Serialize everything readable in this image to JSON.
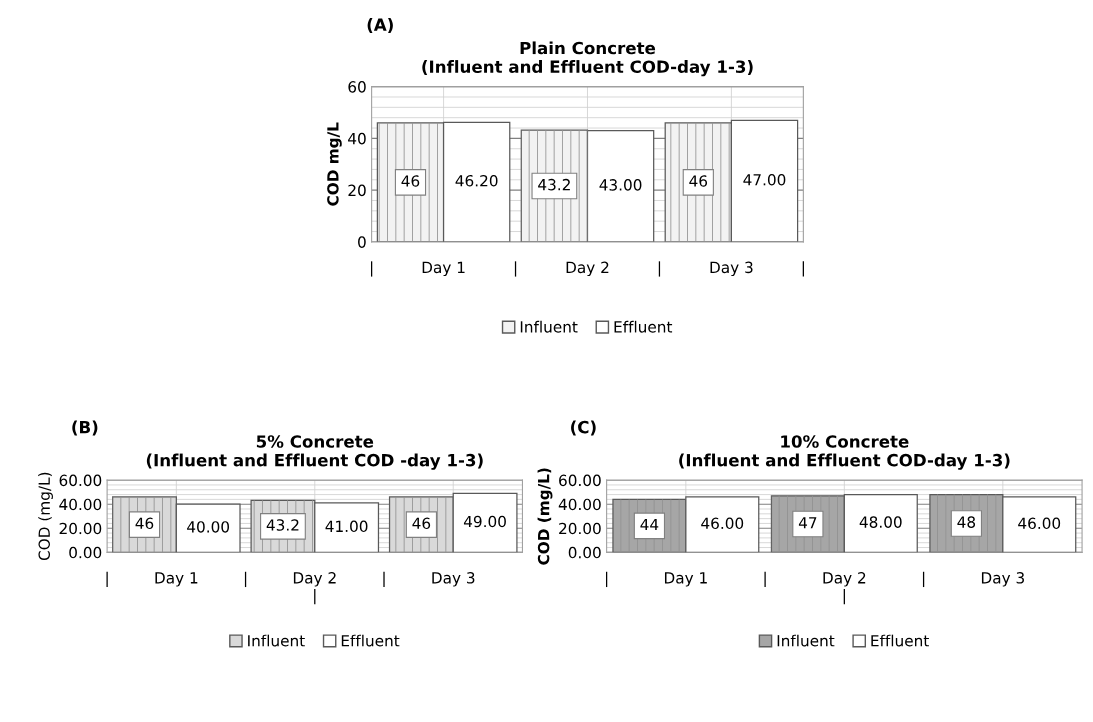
{
  "chart_data": [
    {
      "type": "bar",
      "title": "Plain Concrete\n(Influent and Effluent COD-day 1-3)",
      "ylabel": "COD mg/L",
      "annotations": [
        "(A)",
        "|",
        "|",
        "|",
        "|"
      ],
      "categories": [
        "Day 1",
        "Day 2",
        "Day 3"
      ],
      "series": [
        {
          "name": "Influent",
          "color": "#f2f2f2",
          "values": [
            46,
            43.2,
            46
          ],
          "value_labels": [
            "46",
            "43.2",
            "46"
          ]
        },
        {
          "name": "Effluent",
          "color": "#ffffff",
          "values": [
            46.2,
            43.0,
            47.0
          ],
          "value_labels": [
            "46.20",
            "43.00",
            "47.00"
          ]
        }
      ],
      "ylim": [
        0,
        60
      ],
      "yticks": [
        0,
        20,
        40,
        60
      ],
      "grid": true,
      "legend": "bottom"
    },
    {
      "type": "bar",
      "title": "5% Concrete\n(Influent and Effluent COD -day 1-3)",
      "ylabel": "COD (mg/L)",
      "annotations": [
        "(B)",
        "|",
        "|",
        "|"
      ],
      "categories": [
        "Day 1",
        "Day 2\n|",
        "Day 3"
      ],
      "series": [
        {
          "name": "Influent",
          "color": "#d9d9d9",
          "values": [
            46,
            43.2,
            46
          ],
          "value_labels": [
            "46",
            "43.2",
            "46"
          ]
        },
        {
          "name": "Effluent",
          "color": "#ffffff",
          "values": [
            40.0,
            41.0,
            49.0
          ],
          "value_labels": [
            "40.00",
            "41.00",
            "49.00"
          ]
        }
      ],
      "ylim": [
        0,
        60
      ],
      "yticks": [
        {
          "value": 0,
          "label": "0.00"
        },
        {
          "value": 20,
          "label": "20.00"
        },
        {
          "value": 40,
          "label": "40.00"
        },
        {
          "value": 60,
          "label": "60.00"
        }
      ],
      "grid": true,
      "legend": "bottom"
    },
    {
      "type": "bar",
      "title": "10% Concrete\n(Influent and Effluent COD-day 1-3)",
      "ylabel": "COD (mg/L)",
      "annotations": [
        "(C)",
        "|",
        "|",
        "|"
      ],
      "categories": [
        "Day 1",
        "Day 2\n|",
        "Day 3"
      ],
      "series": [
        {
          "name": "Influent",
          "color": "#a6a6a6",
          "values": [
            44,
            47,
            48
          ],
          "value_labels": [
            "44",
            "47",
            "48"
          ]
        },
        {
          "name": "Effluent",
          "color": "#ffffff",
          "values": [
            46.0,
            48.0,
            46.0
          ],
          "value_labels": [
            "46.00",
            "48.00",
            "46.00"
          ]
        }
      ],
      "ylim": [
        0,
        60
      ],
      "yticks": [
        {
          "value": 0,
          "label": "0.00"
        },
        {
          "value": 20,
          "label": "20.00"
        },
        {
          "value": 40,
          "label": "40.00"
        },
        {
          "value": 60,
          "label": "60.00"
        }
      ],
      "grid": true,
      "legend": "bottom"
    }
  ]
}
